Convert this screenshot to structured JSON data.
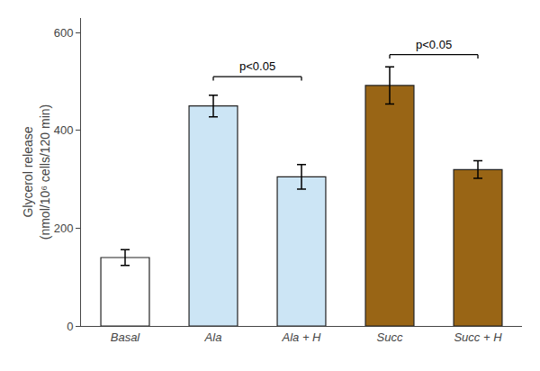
{
  "chart_data": {
    "type": "bar",
    "ylabel": "Glycerol release\n(nmol/10⁶ cells/120 min)",
    "categories": [
      "Basal",
      "Ala",
      "Ala + H",
      "Succ",
      "Succ + H"
    ],
    "values": [
      140,
      450,
      305,
      492,
      320
    ],
    "errors": [
      16,
      22,
      25,
      38,
      18
    ],
    "colors": [
      "#ffffff",
      "#cce5f5",
      "#cce5f5",
      "#996515",
      "#996515"
    ],
    "ylim": [
      0,
      630
    ],
    "yticks": [
      0,
      200,
      400,
      600
    ],
    "grid": false,
    "annotations": [
      {
        "from": "Ala",
        "to": "Ala + H",
        "y": 510,
        "text": "p<0.05"
      },
      {
        "from": "Succ",
        "to": "Succ + H",
        "y": 555,
        "text": "p<0.05"
      }
    ]
  }
}
